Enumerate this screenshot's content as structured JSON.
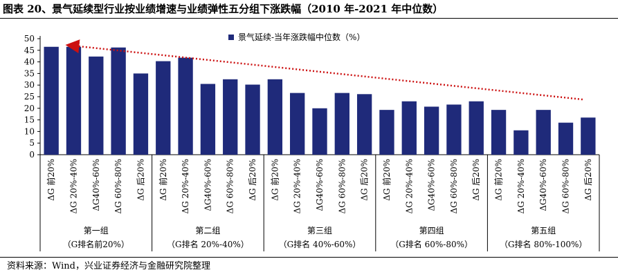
{
  "figure": {
    "title": "图表 20、景气延续型行业按业绩增速与业绩弹性五分组下涨跌幅（2010 年-2021 年中位数）",
    "source": "资料来源：Wind，兴业证券经济与金融研究院整理"
  },
  "chart_data": {
    "type": "bar",
    "title": "",
    "xlabel": "",
    "ylabel": "",
    "ylim": [
      0,
      50
    ],
    "yticks": [
      0,
      5,
      10,
      15,
      20,
      25,
      30,
      35,
      40,
      45,
      50
    ],
    "grid": false,
    "legend_position": "top-right",
    "bar_color": "#1f2a7a",
    "trend_color": "#cc1111",
    "categories": [
      "ΔG 前20%",
      "ΔG 20%-40%",
      "ΔG40%-60%",
      "ΔG 60%-80%",
      "ΔG 后20%",
      "ΔG 前20%",
      "ΔG 20%-40%",
      "ΔG40%-60%",
      "ΔG 60%-80%",
      "ΔG 后20%",
      "ΔG 前20%",
      "ΔG 20%-40%",
      "ΔG40%-60%",
      "ΔG 60%-80%",
      "ΔG 后20%",
      "ΔG 前20%",
      "ΔG 20%-40%",
      "ΔG40%-60%",
      "ΔG 60%-80%",
      "ΔG 后20%",
      "ΔG 前20%",
      "ΔG 20%-40%",
      "ΔG40%-60%",
      "ΔG 60%-80%",
      "ΔG 后20%"
    ],
    "groups": [
      {
        "name": "第一组",
        "sub": "（G排名前20%）"
      },
      {
        "name": "第二组",
        "sub": "（G排名 20%-40%）"
      },
      {
        "name": "第三组",
        "sub": "（G排名 40%-60%）"
      },
      {
        "name": "第四组",
        "sub": "（G排名 60%-80%）"
      },
      {
        "name": "第五组",
        "sub": "（G排名 80%-100%）"
      }
    ],
    "series": [
      {
        "name": "景气延续-当年涨跌幅中位数（%）",
        "values": [
          46.5,
          46.5,
          42.3,
          46.2,
          35.0,
          40.3,
          41.8,
          30.5,
          32.5,
          30.2,
          32.5,
          26.6,
          20.0,
          26.6,
          26.1,
          19.3,
          23.0,
          20.7,
          21.6,
          23.0,
          19.3,
          10.5,
          19.3,
          13.8,
          16.0
        ]
      }
    ],
    "trend_arrow": {
      "from": 23.8,
      "to": 47.0,
      "direction": "toward-first-category"
    }
  }
}
